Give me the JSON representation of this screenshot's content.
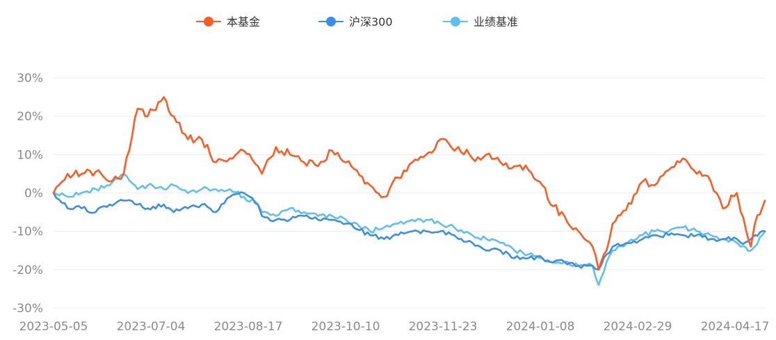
{
  "chart_data": {
    "type": "line",
    "title": "",
    "xlabel": "",
    "ylabel": "",
    "ylim": [
      -30,
      30
    ],
    "yticks": [
      30,
      20,
      10,
      0,
      -10,
      -20,
      -30
    ],
    "ytick_labels": [
      "30%",
      "20%",
      "10%",
      "0%",
      "-10%",
      "-20%",
      "-30%"
    ],
    "xtick_labels": [
      "2023-05-05",
      "2023-07-04",
      "2023-08-17",
      "2023-10-10",
      "2023-11-23",
      "2024-01-08",
      "2024-02-29",
      "2024-04-17"
    ],
    "grid": true,
    "legend_position": "top-center",
    "x": [
      "2023-05-05",
      "2023-05-12",
      "2023-05-19",
      "2023-05-26",
      "2023-06-02",
      "2023-06-09",
      "2023-06-16",
      "2023-06-21",
      "2023-06-29",
      "2023-07-04",
      "2023-07-11",
      "2023-07-18",
      "2023-07-25",
      "2023-08-01",
      "2023-08-08",
      "2023-08-15",
      "2023-08-17",
      "2023-08-24",
      "2023-08-31",
      "2023-09-07",
      "2023-09-14",
      "2023-09-21",
      "2023-09-28",
      "2023-10-10",
      "2023-10-17",
      "2023-10-24",
      "2023-10-31",
      "2023-11-07",
      "2023-11-14",
      "2023-11-21",
      "2023-11-23",
      "2023-11-30",
      "2023-12-07",
      "2023-12-14",
      "2023-12-21",
      "2023-12-28",
      "2024-01-04",
      "2024-01-08",
      "2024-01-15",
      "2024-01-22",
      "2024-01-29",
      "2024-02-01",
      "2024-02-05",
      "2024-02-08",
      "2024-02-20",
      "2024-02-23",
      "2024-02-29",
      "2024-03-07",
      "2024-03-14",
      "2024-03-21",
      "2024-03-28",
      "2024-04-03",
      "2024-04-10",
      "2024-04-12",
      "2024-04-17",
      "2024-04-19",
      "2024-04-24"
    ],
    "series": [
      {
        "name": "本基金",
        "color": "#ff5a1f",
        "values": [
          0,
          5,
          5,
          5.5,
          3,
          5,
          22,
          20,
          25,
          20,
          14,
          14,
          8,
          9,
          11,
          7,
          5,
          12,
          10,
          8,
          7,
          11,
          8,
          2,
          -1,
          4,
          8,
          10,
          14,
          11,
          12,
          9,
          10,
          8,
          7,
          6,
          2,
          -3,
          -6,
          -10,
          -14,
          -20,
          -15,
          -8,
          0,
          3,
          2,
          6,
          9,
          5,
          3,
          -4,
          0,
          -5,
          -14,
          -8,
          -2
        ]
      },
      {
        "name": "沪深300",
        "color": "#3b8ee8",
        "values": [
          0,
          -4,
          -4,
          -5,
          -3,
          -2,
          -3,
          -4,
          -3,
          -5,
          -4,
          -3,
          -5,
          -1,
          0,
          -3,
          -6,
          -7,
          -7,
          -6,
          -7,
          -7,
          -8,
          -11,
          -12,
          -11,
          -10,
          -10,
          -10,
          -11,
          -12,
          -13,
          -15,
          -15,
          -17,
          -17,
          -17,
          -18,
          -18,
          -19,
          -19,
          -20,
          -16,
          -14,
          -13,
          -12,
          -11,
          -11,
          -11,
          -11,
          -12,
          -12,
          -12,
          -13,
          -12,
          -11,
          -10
        ]
      },
      {
        "name": "业绩基准",
        "color": "#5ec0f2",
        "values": [
          0,
          -1,
          0,
          1,
          2,
          5,
          1,
          2,
          1,
          2,
          0,
          1,
          1,
          1,
          -1,
          -3,
          -5,
          -6,
          -4,
          -5,
          -6,
          -6,
          -7,
          -10,
          -9,
          -8,
          -7,
          -7,
          -8,
          -9,
          -10,
          -11,
          -12,
          -13,
          -15,
          -16,
          -17,
          -18,
          -18,
          -19,
          -19,
          -24,
          -18,
          -15,
          -12,
          -11,
          -10,
          -10,
          -9,
          -10,
          -11,
          -12,
          -13,
          -14,
          -15,
          -14,
          -10
        ]
      }
    ]
  }
}
